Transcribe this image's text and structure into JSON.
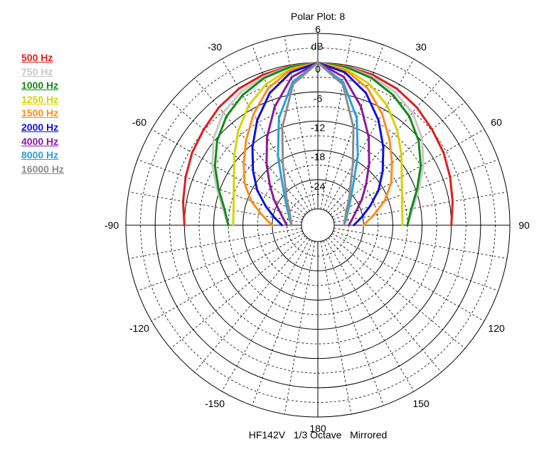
{
  "chart_data": {
    "type": "polar-line",
    "title": "Polar Plot: 8",
    "footer": "HF142V   1/3 Octave   Mirrored",
    "radial_unit": "dB",
    "radial_ticks": [
      "6",
      "0",
      "-6",
      "-12",
      "-18",
      "-24"
    ],
    "radial_tick_values": [
      6,
      0,
      -6,
      -12,
      -18,
      -24
    ],
    "radial_range": [
      -30,
      6
    ],
    "angle_labels": [
      {
        "angle": 0,
        "text": "6"
      },
      {
        "angle": 30,
        "text": "30"
      },
      {
        "angle": -30,
        "text": "-30"
      },
      {
        "angle": 60,
        "text": "60"
      },
      {
        "angle": -60,
        "text": "-60"
      },
      {
        "angle": 90,
        "text": "90"
      },
      {
        "angle": -90,
        "text": "-90"
      },
      {
        "angle": 120,
        "text": "120"
      },
      {
        "angle": -120,
        "text": "-120"
      },
      {
        "angle": 150,
        "text": "150"
      },
      {
        "angle": -150,
        "text": "-150"
      },
      {
        "angle": 180,
        "text": "180"
      }
    ],
    "angle_grid_step_deg": 10,
    "grid": true,
    "legend_position": "left",
    "series": [
      {
        "name": "500 Hz",
        "color": "#e41a1c",
        "angles": [
          0,
          10,
          20,
          30,
          40,
          50,
          60,
          70,
          80,
          90
        ],
        "db": [
          0,
          -0.2,
          -0.5,
          -1,
          -1.8,
          -2.8,
          -3.6,
          -4.5,
          -5.3,
          -6
        ]
      },
      {
        "name": "750 Hz",
        "color": "#c8c8c8",
        "angles": [
          0,
          10,
          20,
          30,
          40,
          50,
          60,
          70,
          80,
          90
        ],
        "db": [
          0,
          -0.3,
          -0.9,
          -1.8,
          -3.2,
          -5.5,
          -8.4,
          -11.3,
          -13.6,
          -15
        ]
      },
      {
        "name": "1000 Hz",
        "color": "#138a13",
        "angles": [
          0,
          10,
          20,
          30,
          40,
          50,
          60,
          70,
          80,
          90
        ],
        "db": [
          0,
          -0.4,
          -1.2,
          -2.5,
          -4.2,
          -6.4,
          -9,
          -11.7,
          -13.9,
          -15
        ]
      },
      {
        "name": "1250 Hz",
        "color": "#d4d400",
        "angles": [
          0,
          10,
          20,
          30,
          40,
          50,
          60,
          70,
          80,
          90
        ],
        "db": [
          0,
          -0.8,
          -2.5,
          -5,
          -8,
          -11,
          -13.5,
          -15,
          -15.8,
          -16
        ]
      },
      {
        "name": "1500 Hz",
        "color": "#ff8c1a",
        "angles": [
          0,
          10,
          20,
          30,
          40,
          50,
          60,
          70,
          80,
          90
        ],
        "db": [
          0,
          -1,
          -3.5,
          -7,
          -10.5,
          -13.5,
          -16,
          -18.8,
          -21.8,
          -24
        ]
      },
      {
        "name": "2000 Hz",
        "color": "#1010d8",
        "angles": [
          0,
          10,
          20,
          30,
          40,
          50,
          60,
          70,
          80,
          90
        ],
        "db": [
          0,
          -1.5,
          -4.5,
          -8.5,
          -12.5,
          -16,
          -19,
          -22,
          -24.3,
          -26
        ]
      },
      {
        "name": "4000 Hz",
        "color": "#8a1a9b",
        "angles": [
          0,
          10,
          20,
          30,
          40,
          50,
          60,
          70,
          80,
          90
        ],
        "db": [
          0,
          -2.5,
          -7.5,
          -12.5,
          -17,
          -20.5,
          -23,
          -25,
          -26.2,
          -27
        ]
      },
      {
        "name": "8000 Hz",
        "color": "#2aa0d8",
        "angles": [
          0,
          10,
          20,
          30,
          40,
          50,
          60,
          70,
          80,
          90
        ],
        "db": [
          0,
          -3.5,
          -10,
          -17,
          -22,
          -24.5,
          -26,
          -27,
          -27.5,
          -28
        ]
      },
      {
        "name": "16000 Hz",
        "color": "#8c8c8c",
        "angles": [
          0,
          10,
          20,
          30,
          40,
          50,
          60,
          70,
          80,
          90
        ],
        "db": [
          0,
          -4,
          -12,
          -19,
          -23,
          -25,
          -26.5,
          -27.3,
          -27.7,
          -28
        ]
      }
    ]
  }
}
